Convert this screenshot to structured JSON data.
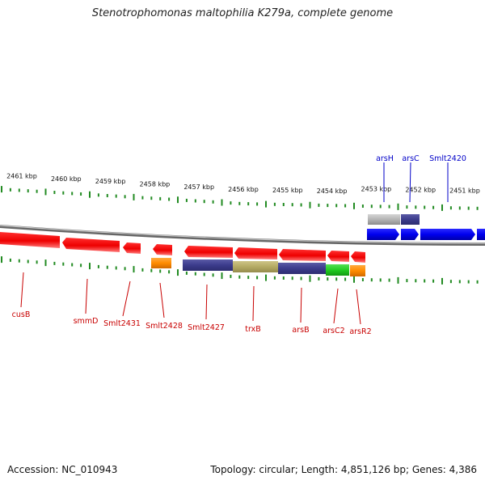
{
  "title": "Stenotrophomonas maltophilia K279a, complete genome",
  "footer": {
    "accession": "Accession: NC_010943",
    "genome_info": "Topology: circular; Length: 4,851,126 bp; Genes: 4,386"
  },
  "colors": {
    "forward_gene": "#0000ee",
    "reverse_gene": "#ee0000",
    "forward_label": "#0000c8",
    "reverse_label": "#c80000",
    "tick": "#228b22",
    "backbone": "#777777",
    "feature_navy": "#3c3c8c",
    "feature_khaki": "#b4aa64",
    "feature_green": "#22cc22",
    "feature_orange": "#ff8c00",
    "feature_gray": "#b4b4b4"
  },
  "kbp_ticks": [
    "2461 kbp",
    "2460 kbp",
    "2459 kbp",
    "2458 kbp",
    "2457 kbp",
    "2456 kbp",
    "2455 kbp",
    "2454 kbp",
    "2453 kbp",
    "2452 kbp",
    "2451 kbp"
  ],
  "forward_genes": [
    "arsH",
    "arsC",
    "Smlt2420"
  ],
  "reverse_genes": [
    "cusB",
    "smmD",
    "Smlt2431",
    "Smlt2428",
    "Smlt2427",
    "trxB",
    "arsB",
    "arsC2",
    "arsR2"
  ]
}
